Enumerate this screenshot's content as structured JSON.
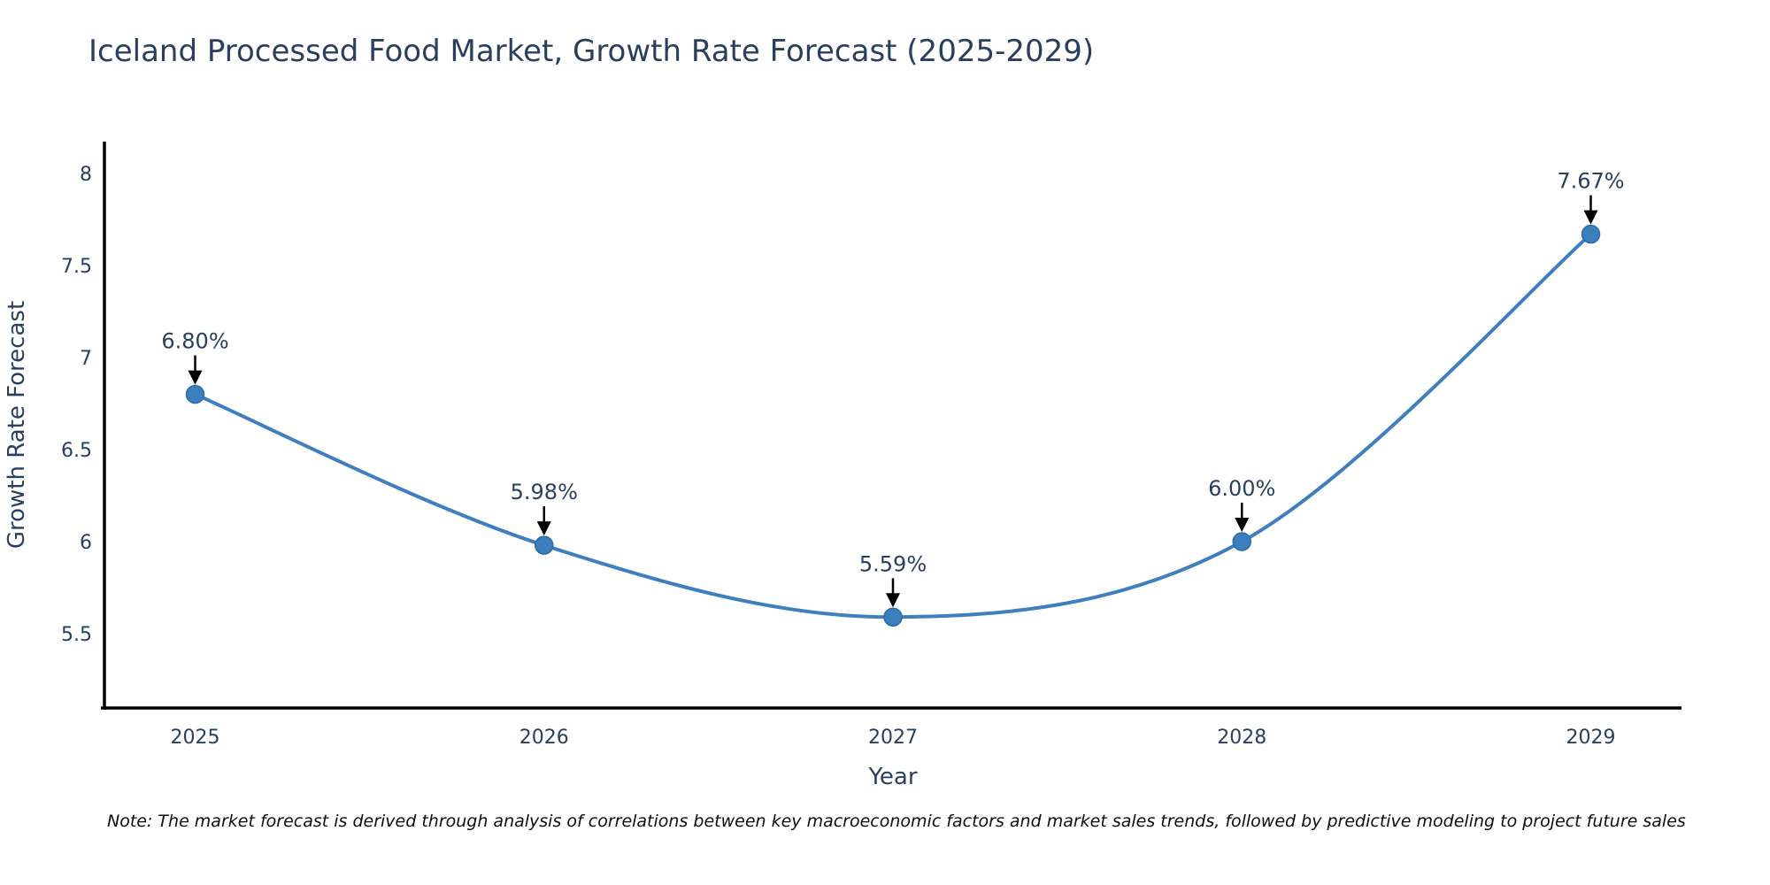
{
  "title": "Iceland Processed Food Market, Growth Rate Forecast (2025-2029)",
  "note": "Note: The market forecast is derived through analysis of correlations between key macroeconomic factors and market sales trends, followed by predictive modeling to project future sales",
  "chart_data": {
    "type": "line",
    "title": "Iceland Processed Food Market, Growth Rate Forecast (2025-2029)",
    "xlabel": "Year",
    "ylabel": "Growth Rate Forecast",
    "x": [
      2025,
      2026,
      2027,
      2028,
      2029
    ],
    "values": [
      6.8,
      5.98,
      5.59,
      6.0,
      7.67
    ],
    "point_labels": [
      "6.80%",
      "5.98%",
      "5.59%",
      "6.00%",
      "7.67%"
    ],
    "x_tick_labels": [
      "2025",
      "2026",
      "2027",
      "2028",
      "2029"
    ],
    "y_ticks": [
      5.5,
      6,
      6.5,
      7,
      7.5,
      8
    ],
    "y_tick_labels": [
      "5.5",
      "6",
      "6.5",
      "7",
      "7.5",
      "8"
    ],
    "xlim": [
      2024.74,
      2029.26
    ],
    "ylim": [
      5.096,
      8.173
    ],
    "grid": false,
    "legend": "none",
    "smooth": true,
    "colors": {
      "line": "#3f7fbf",
      "marker_fill": "#3d7ebd",
      "marker_edge": "#2e6da4",
      "axis_spine": "#000000",
      "text": "#2a3f5f",
      "annotation_arrow": "#000000",
      "background": "#ffffff"
    }
  }
}
